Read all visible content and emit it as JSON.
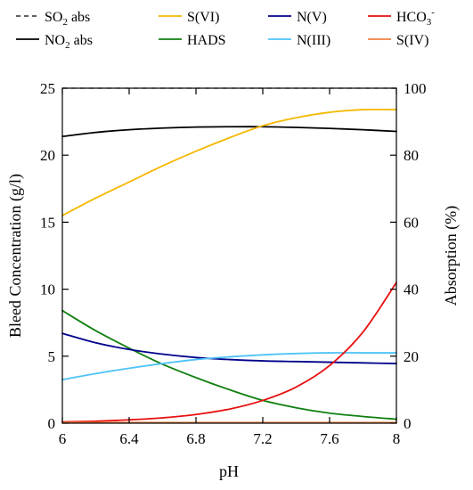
{
  "chart_data": {
    "type": "line",
    "xlabel": "pH",
    "ylabel_left": "Bleed Concentration (g/l)",
    "ylabel_right": "Absorption (%)",
    "xlim": [
      6,
      8
    ],
    "ylim_left": [
      0,
      25
    ],
    "ylim_right": [
      0,
      100
    ],
    "x_ticks": [
      "6",
      "6.4",
      "6.8",
      "7.2",
      "7.6",
      "8"
    ],
    "y_left_ticks": [
      "0",
      "5",
      "10",
      "15",
      "20",
      "25"
    ],
    "y_right_ticks": [
      "0",
      "20",
      "40",
      "60",
      "80",
      "100"
    ],
    "grid": false,
    "legend_position": "top",
    "series": [
      {
        "name": "SO2 abs",
        "label_main": "SO",
        "label_sub": "2",
        "label_tail": " abs",
        "axis": "right",
        "color": "#000000",
        "dash": true,
        "x": [
          6.0,
          6.4,
          6.8,
          7.2,
          7.6,
          8.0
        ],
        "y": [
          100,
          100,
          100,
          100,
          100,
          100
        ]
      },
      {
        "name": "NO2 abs",
        "label_main": "NO",
        "label_sub": "2",
        "label_tail": " abs",
        "axis": "right",
        "color": "#000000",
        "dash": false,
        "x": [
          6.0,
          6.2,
          6.4,
          6.6,
          6.8,
          7.0,
          7.2,
          7.4,
          7.6,
          7.8,
          8.0
        ],
        "y": [
          85.6,
          86.8,
          87.6,
          88.1,
          88.4,
          88.5,
          88.5,
          88.3,
          88.0,
          87.6,
          87.1
        ]
      },
      {
        "name": "S(VI)",
        "label_main": "S(VI)",
        "axis": "left",
        "color": "#F5B800",
        "dash": false,
        "x": [
          6.0,
          6.2,
          6.4,
          6.6,
          6.8,
          7.0,
          7.2,
          7.4,
          7.6,
          7.8,
          8.0
        ],
        "y": [
          15.5,
          16.8,
          18.0,
          19.2,
          20.3,
          21.3,
          22.2,
          22.8,
          23.2,
          23.4,
          23.4
        ]
      },
      {
        "name": "HADS",
        "label_main": "HADS",
        "axis": "left",
        "color": "#108010",
        "dash": false,
        "x": [
          6.0,
          6.2,
          6.4,
          6.6,
          6.8,
          7.0,
          7.2,
          7.4,
          7.6,
          7.8,
          8.0
        ],
        "y": [
          8.4,
          6.9,
          5.6,
          4.4,
          3.4,
          2.5,
          1.7,
          1.15,
          0.75,
          0.5,
          0.3
        ]
      },
      {
        "name": "N(V)",
        "label_main": "N(V)",
        "axis": "left",
        "color": "#00008B",
        "dash": false,
        "x": [
          6.0,
          6.2,
          6.4,
          6.6,
          6.8,
          7.0,
          7.2,
          7.4,
          7.6,
          7.8,
          8.0
        ],
        "y": [
          6.7,
          6.0,
          5.5,
          5.15,
          4.9,
          4.75,
          4.65,
          4.6,
          4.55,
          4.5,
          4.45
        ]
      },
      {
        "name": "N(III)",
        "label_main": "N(III)",
        "axis": "left",
        "color": "#4FC3F7",
        "dash": false,
        "x": [
          6.0,
          6.2,
          6.4,
          6.6,
          6.8,
          7.0,
          7.2,
          7.4,
          7.6,
          7.8,
          8.0
        ],
        "y": [
          3.25,
          3.7,
          4.1,
          4.45,
          4.75,
          4.95,
          5.1,
          5.2,
          5.25,
          5.25,
          5.25
        ]
      },
      {
        "name": "HCO3-",
        "label_main": "HCO",
        "label_sub": "3",
        "label_sup": "-",
        "axis": "left",
        "color": "#E81010",
        "dash": false,
        "x": [
          6.0,
          6.2,
          6.4,
          6.6,
          6.8,
          7.0,
          7.2,
          7.4,
          7.6,
          7.8,
          8.0
        ],
        "y": [
          0.1,
          0.15,
          0.25,
          0.4,
          0.65,
          1.05,
          1.7,
          2.7,
          4.3,
          6.8,
          10.5
        ]
      },
      {
        "name": "S(IV)",
        "label_main": "S(IV)",
        "axis": "left",
        "color": "#F08040",
        "dash": false,
        "x": [
          6.0,
          8.0
        ],
        "y": [
          0.05,
          0.05
        ]
      }
    ]
  }
}
